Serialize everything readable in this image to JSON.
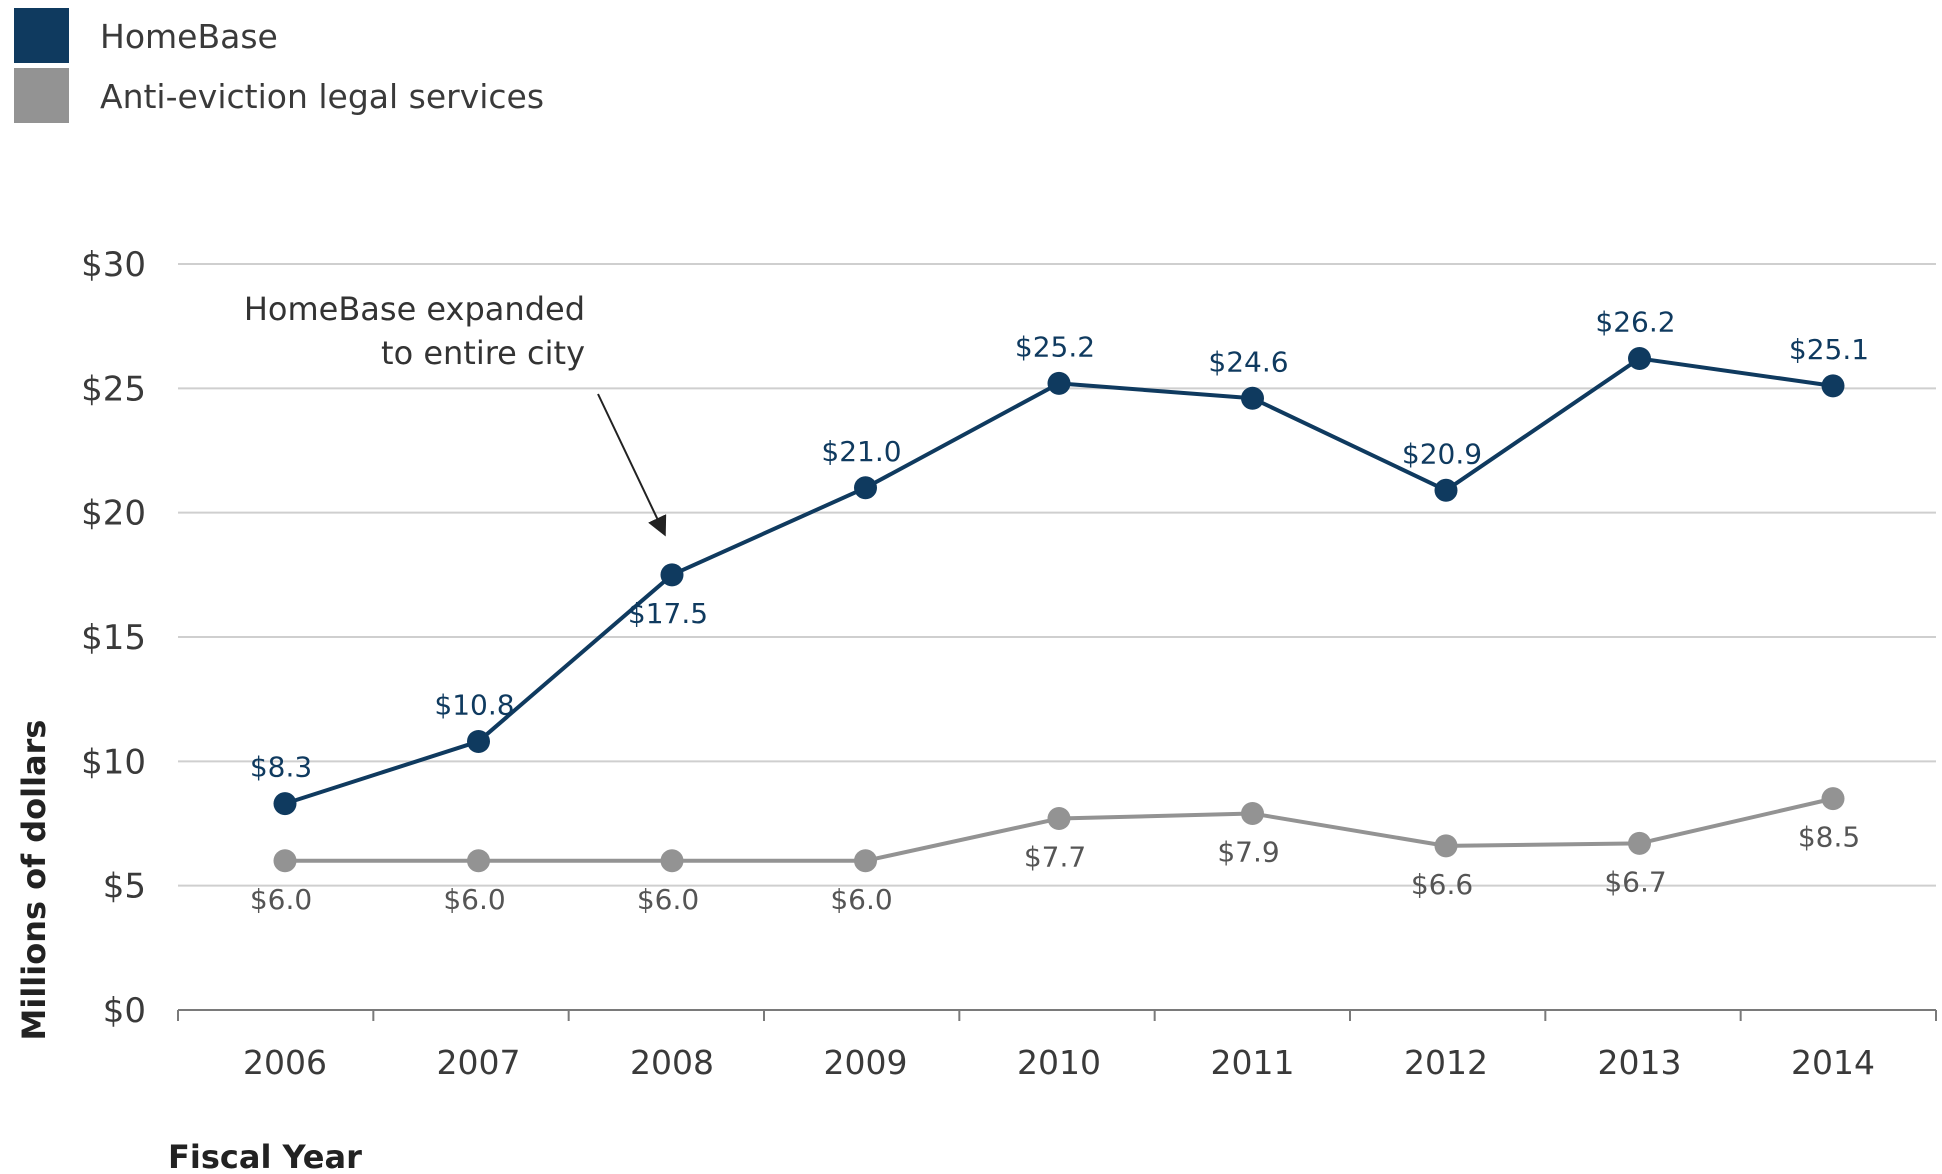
{
  "chart_data": {
    "type": "line",
    "x": [
      "2006",
      "2007",
      "2008",
      "2009",
      "2010",
      "2011",
      "2012",
      "2013",
      "2014"
    ],
    "series": [
      {
        "name": "HomeBase",
        "values": [
          8.3,
          10.8,
          17.5,
          21.0,
          25.2,
          24.6,
          20.9,
          26.2,
          25.1
        ],
        "labels": [
          "$8.3",
          "$10.8",
          "$17.5",
          "$21.0",
          "$25.2",
          "$24.6",
          "$20.9",
          "$26.2",
          "$25.1"
        ],
        "label_positions": [
          "above",
          "above",
          "below",
          "above",
          "above",
          "above",
          "above",
          "above",
          "above"
        ],
        "color": "#0f3a5f"
      },
      {
        "name": "Anti-eviction legal services",
        "values": [
          6.0,
          6.0,
          6.0,
          6.0,
          7.7,
          7.9,
          6.6,
          6.7,
          8.5
        ],
        "labels": [
          "$6.0",
          "$6.0",
          "$6.0",
          "$6.0",
          "$7.7",
          "$7.9",
          "$6.6",
          "$6.7",
          "$8.5"
        ],
        "label_positions": [
          "below",
          "below",
          "below",
          "below",
          "below",
          "below",
          "below",
          "below",
          "below"
        ],
        "color": "#939393"
      }
    ],
    "xlabel": "Fiscal Year",
    "ylabel": "Millions of dollars",
    "ylim": [
      0,
      30
    ],
    "yticks": [
      0,
      5,
      10,
      15,
      20,
      25,
      30
    ],
    "ytick_labels": [
      "$0",
      "$5",
      "$10",
      "$15",
      "$20",
      "$25",
      "$30"
    ],
    "grid": true,
    "legend": "top-left",
    "annotation": {
      "lines": [
        "HomeBase expanded",
        "to entire city"
      ],
      "points_to": "2008"
    },
    "axis_color": "#7a7a7a",
    "grid_color": "#cfcfcf"
  }
}
